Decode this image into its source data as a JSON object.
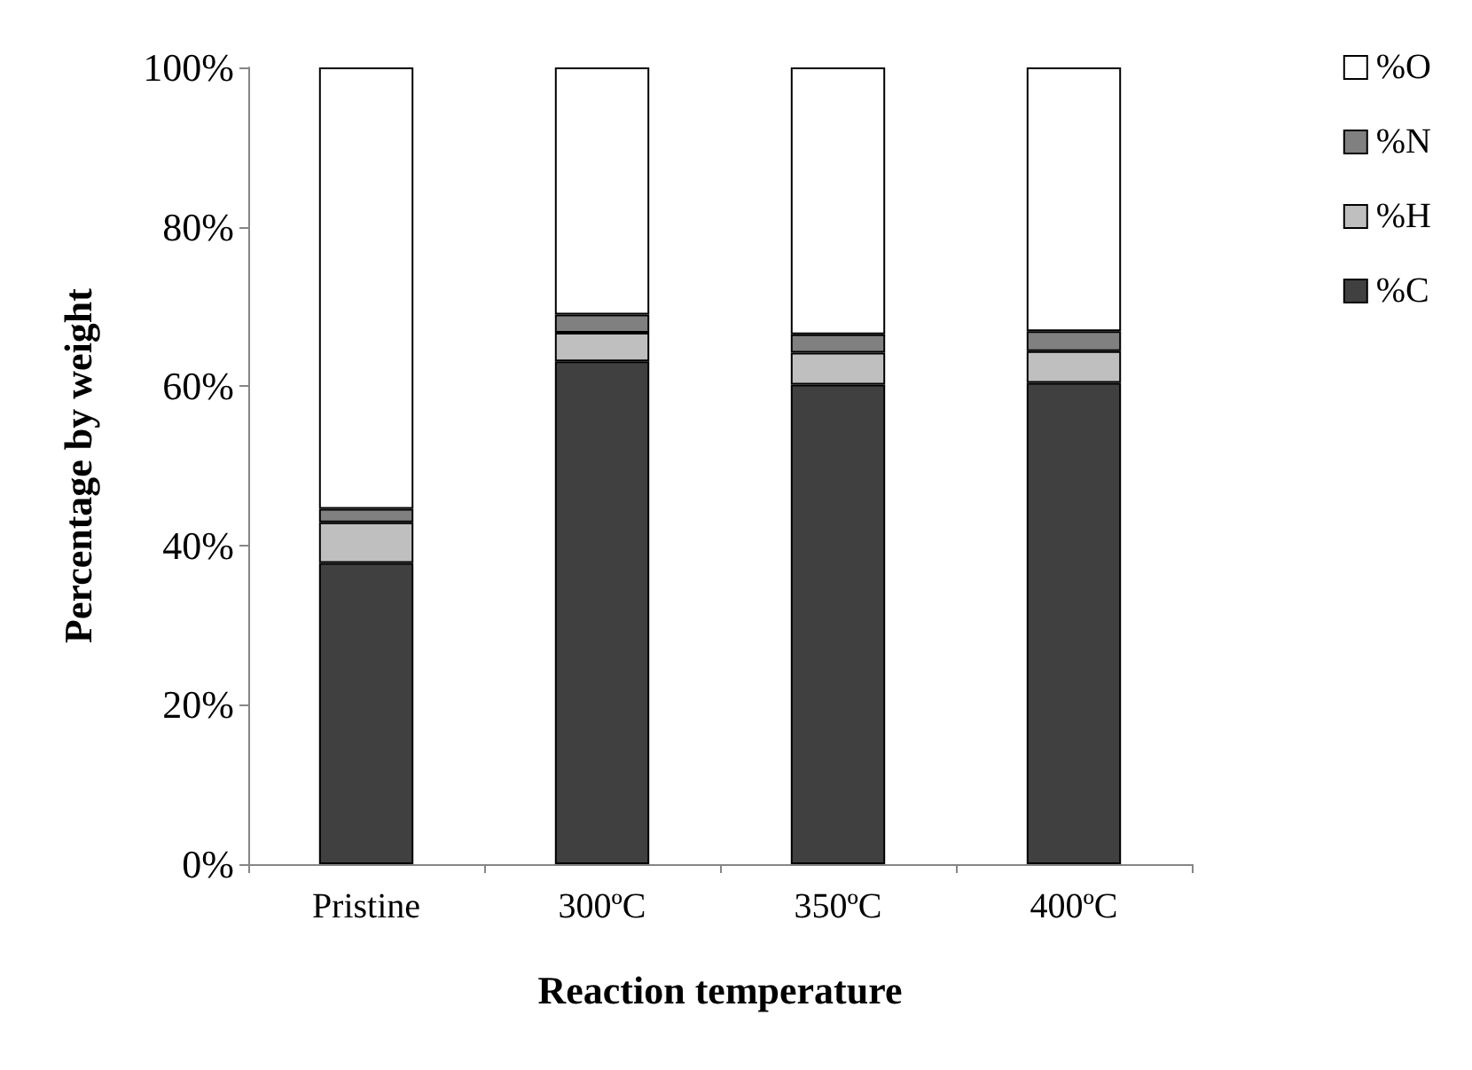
{
  "chart_data": {
    "type": "bar",
    "stacked": true,
    "xlabel": "Reaction temperature",
    "ylabel": "Percentage by weight",
    "categories": [
      "Pristine",
      "300ºC",
      "350ºC",
      "400ºC"
    ],
    "series": [
      {
        "name": "%C",
        "color": "#404040",
        "values": [
          37.8,
          63.1,
          60.2,
          60.4
        ]
      },
      {
        "name": "%H",
        "color": "#bfbfbf",
        "values": [
          5.1,
          3.6,
          4.0,
          4.0
        ]
      },
      {
        "name": "%N",
        "color": "#808080",
        "values": [
          1.7,
          2.3,
          2.3,
          2.5
        ]
      },
      {
        "name": "%O",
        "color": "#ffffff",
        "values": [
          55.4,
          31.0,
          33.5,
          33.1
        ]
      }
    ],
    "ylim": [
      0,
      100
    ],
    "yticks": [
      {
        "value": 0,
        "label": "0%"
      },
      {
        "value": 20,
        "label": "20%"
      },
      {
        "value": 40,
        "label": "40%"
      },
      {
        "value": 60,
        "label": "60%"
      },
      {
        "value": 80,
        "label": "80%"
      },
      {
        "value": 100,
        "label": "100%"
      }
    ],
    "grid": false,
    "legend": "right"
  }
}
